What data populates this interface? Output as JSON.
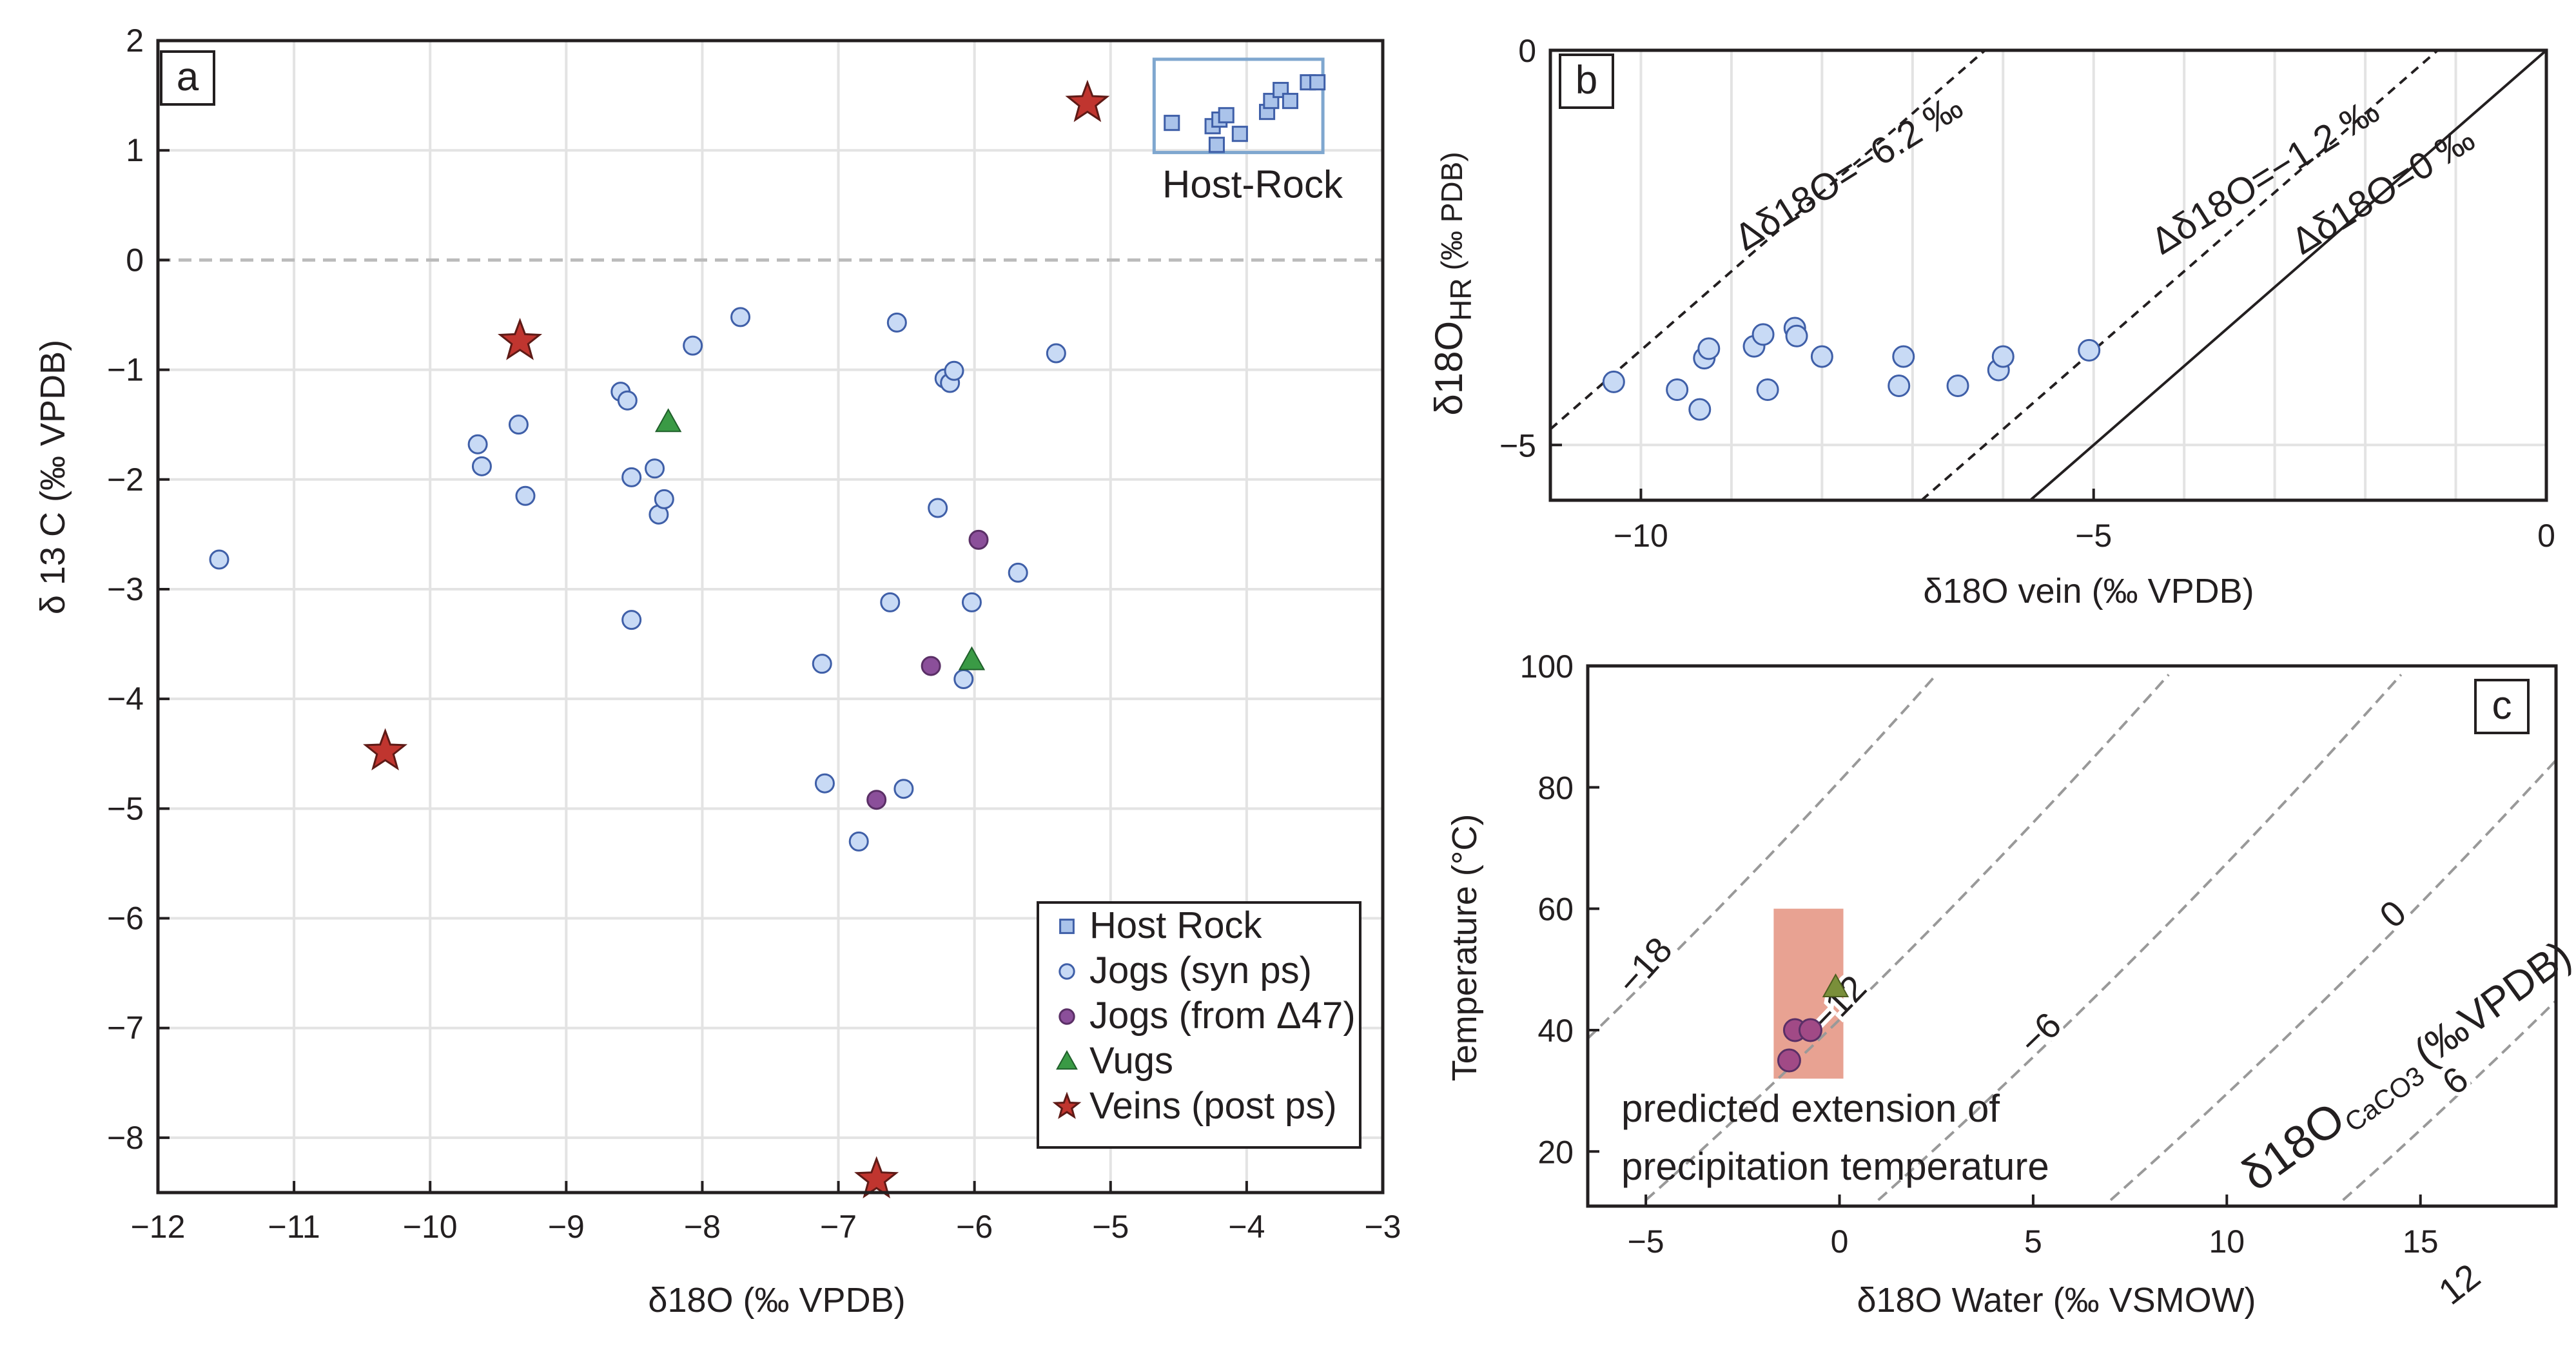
{
  "colors": {
    "host_rock": "#aac3ea",
    "jogs_syn": "#c8daf5",
    "jogs_d47": "#8b4f9a",
    "vugs": "#3a9a45",
    "veins": "#c0352f",
    "edge": "#3f5fa8",
    "box": "#7fa7cf",
    "field_rect": "#e8a292"
  },
  "chart_data": [
    {
      "panel": "a",
      "type": "scatter",
      "title": "",
      "panel_label": "a",
      "xlabel": "δ18O (‰ VPDB)",
      "ylabel": "δ 13 C (‰ VPDB)",
      "xlim": [
        -12,
        -3
      ],
      "ylim": [
        -8.5,
        2
      ],
      "xticks": [
        -12,
        -11,
        -10,
        -9,
        -8,
        -7,
        -6,
        -5,
        -4,
        -3
      ],
      "yticks": [
        -8,
        -7,
        -6,
        -5,
        -4,
        -3,
        -2,
        -1,
        0,
        1,
        2
      ],
      "xtick_labels": [
        "−12",
        "−11",
        "−10",
        "−9",
        "−8",
        "−7",
        "−6",
        "−5",
        "−4",
        "−3"
      ],
      "ytick_labels": [
        "−8",
        "−7",
        "−6",
        "−5",
        "−4",
        "−3",
        "−2",
        "−1",
        "0",
        "1",
        "2"
      ],
      "grid": true,
      "reference_line": {
        "y": 0,
        "style": "dashed"
      },
      "annotation": "Host-Rock",
      "legend_position": "bottom-right",
      "series": [
        {
          "name": "Host Rock",
          "marker": "square",
          "points": [
            [
              -4.55,
              1.25
            ],
            [
              -4.25,
              1.22
            ],
            [
              -4.2,
              1.28
            ],
            [
              -4.15,
              1.32
            ],
            [
              -4.22,
              1.05
            ],
            [
              -4.05,
              1.15
            ],
            [
              -3.85,
              1.35
            ],
            [
              -3.82,
              1.45
            ],
            [
              -3.75,
              1.55
            ],
            [
              -3.68,
              1.45
            ],
            [
              -3.55,
              1.62
            ],
            [
              -3.48,
              1.62
            ]
          ]
        },
        {
          "name": "Jogs (syn ps)",
          "marker": "circle",
          "points": [
            [
              -11.55,
              -2.73
            ],
            [
              -9.65,
              -1.68
            ],
            [
              -9.62,
              -1.88
            ],
            [
              -9.35,
              -1.5
            ],
            [
              -9.3,
              -2.15
            ],
            [
              -8.6,
              -1.2
            ],
            [
              -8.55,
              -1.28
            ],
            [
              -8.52,
              -1.98
            ],
            [
              -8.52,
              -3.28
            ],
            [
              -8.35,
              -1.9
            ],
            [
              -8.32,
              -2.32
            ],
            [
              -8.28,
              -2.18
            ],
            [
              -8.07,
              -0.78
            ],
            [
              -7.72,
              -0.52
            ],
            [
              -7.12,
              -3.68
            ],
            [
              -7.1,
              -4.77
            ],
            [
              -6.85,
              -5.3
            ],
            [
              -6.62,
              -3.12
            ],
            [
              -6.57,
              -0.57
            ],
            [
              -6.52,
              -4.82
            ],
            [
              -6.27,
              -2.26
            ],
            [
              -6.22,
              -1.08
            ],
            [
              -6.18,
              -1.12
            ],
            [
              -6.15,
              -1.01
            ],
            [
              -6.08,
              -3.82
            ],
            [
              -6.02,
              -3.12
            ],
            [
              -5.68,
              -2.85
            ],
            [
              -5.4,
              -0.85
            ]
          ]
        },
        {
          "name": "Jogs (from Δ47)",
          "marker": "circle",
          "points": [
            [
              -6.32,
              -3.7
            ],
            [
              -5.97,
              -2.55
            ],
            [
              -6.72,
              -4.92
            ]
          ]
        },
        {
          "name": "Vugs",
          "marker": "triangle",
          "points": [
            [
              -8.25,
              -1.48
            ],
            [
              -6.02,
              -3.65
            ]
          ]
        },
        {
          "name": "Veins (post ps)",
          "marker": "star",
          "points": [
            [
              -5.17,
              1.43
            ],
            [
              -9.34,
              -0.74
            ],
            [
              -10.33,
              -4.48
            ],
            [
              -6.72,
              -8.38
            ]
          ]
        }
      ]
    },
    {
      "panel": "b",
      "type": "scatter",
      "panel_label": "b",
      "xlabel": "δ18O vein (‰ VPDB)",
      "ylabel_main": "δ18O",
      "ylabel_sub": "HR",
      "ylabel_unit": "(‰ PDB)",
      "xlim": [
        -11,
        0
      ],
      "ylim": [
        -5.7,
        0
      ],
      "xticks": [
        -10,
        -5,
        0
      ],
      "yticks": [
        -5,
        0
      ],
      "xtick_labels": [
        "−10",
        "−5",
        "0"
      ],
      "ytick_labels": [
        "−5",
        "0"
      ],
      "grid": true,
      "lines": [
        {
          "label": "Δδ18O=−6.2 ‰",
          "offset": -6.2,
          "style": "dashed"
        },
        {
          "label": "Δδ18O=−1.2 ‰",
          "offset": -1.2,
          "style": "dashed"
        },
        {
          "label": "Δδ18O=0 ‰",
          "offset": 0,
          "style": "solid"
        }
      ],
      "points": [
        [
          -10.3,
          -4.2
        ],
        [
          -9.6,
          -4.3
        ],
        [
          -9.35,
          -4.55
        ],
        [
          -9.3,
          -3.9
        ],
        [
          -9.25,
          -3.78
        ],
        [
          -8.75,
          -3.75
        ],
        [
          -8.65,
          -3.6
        ],
        [
          -8.6,
          -4.3
        ],
        [
          -8.3,
          -3.52
        ],
        [
          -8.28,
          -3.62
        ],
        [
          -8.0,
          -3.88
        ],
        [
          -7.15,
          -4.25
        ],
        [
          -7.1,
          -3.88
        ],
        [
          -6.5,
          -4.25
        ],
        [
          -6.05,
          -4.05
        ],
        [
          -6.0,
          -3.88
        ],
        [
          -5.05,
          -3.8
        ]
      ]
    },
    {
      "panel": "c",
      "type": "line",
      "panel_label": "c",
      "xlabel": "δ18O Water (‰ VSMOW)",
      "ylabel": "Temperature (°C)",
      "xlim": [
        -6.5,
        18.5
      ],
      "ylim": [
        11,
        100
      ],
      "xticks": [
        -5,
        0,
        5,
        10,
        15
      ],
      "yticks": [
        20,
        40,
        60,
        80,
        100
      ],
      "xtick_labels": [
        "−5",
        "0",
        "5",
        "10",
        "15"
      ],
      "ytick_labels": [
        "20",
        "40",
        "60",
        "80",
        "100"
      ],
      "isolines_label": "δ18O CaCO3 (‰VPDB)",
      "isolines_label_main": "δ18O",
      "isolines_label_sub": "CaCO3",
      "isolines_label_unit": "(‰VPDB)",
      "isolines": [
        {
          "value": -18,
          "label": "−18"
        },
        {
          "value": -12,
          "label": "−12"
        },
        {
          "value": -6,
          "label": "−6"
        },
        {
          "value": 0,
          "label": "0"
        },
        {
          "value": 6,
          "label": "6"
        },
        {
          "value": 12,
          "label": "12"
        }
      ],
      "field_rectangle": {
        "x": [
          -1.7,
          0.1
        ],
        "y": [
          32,
          60
        ]
      },
      "annotation": "predicted extension of precipitation temperature",
      "annotation_line1": "predicted extension of",
      "annotation_line2": "precipitation temperature",
      "points": [
        {
          "series": "Jogs (from Δ47)",
          "x": -1.3,
          "y": 35
        },
        {
          "series": "Jogs (from Δ47)",
          "x": -1.15,
          "y": 40
        },
        {
          "series": "Jogs (from Δ47)",
          "x": -0.75,
          "y": 40
        },
        {
          "series": "Vugs",
          "x": -0.1,
          "y": 47
        }
      ]
    }
  ]
}
